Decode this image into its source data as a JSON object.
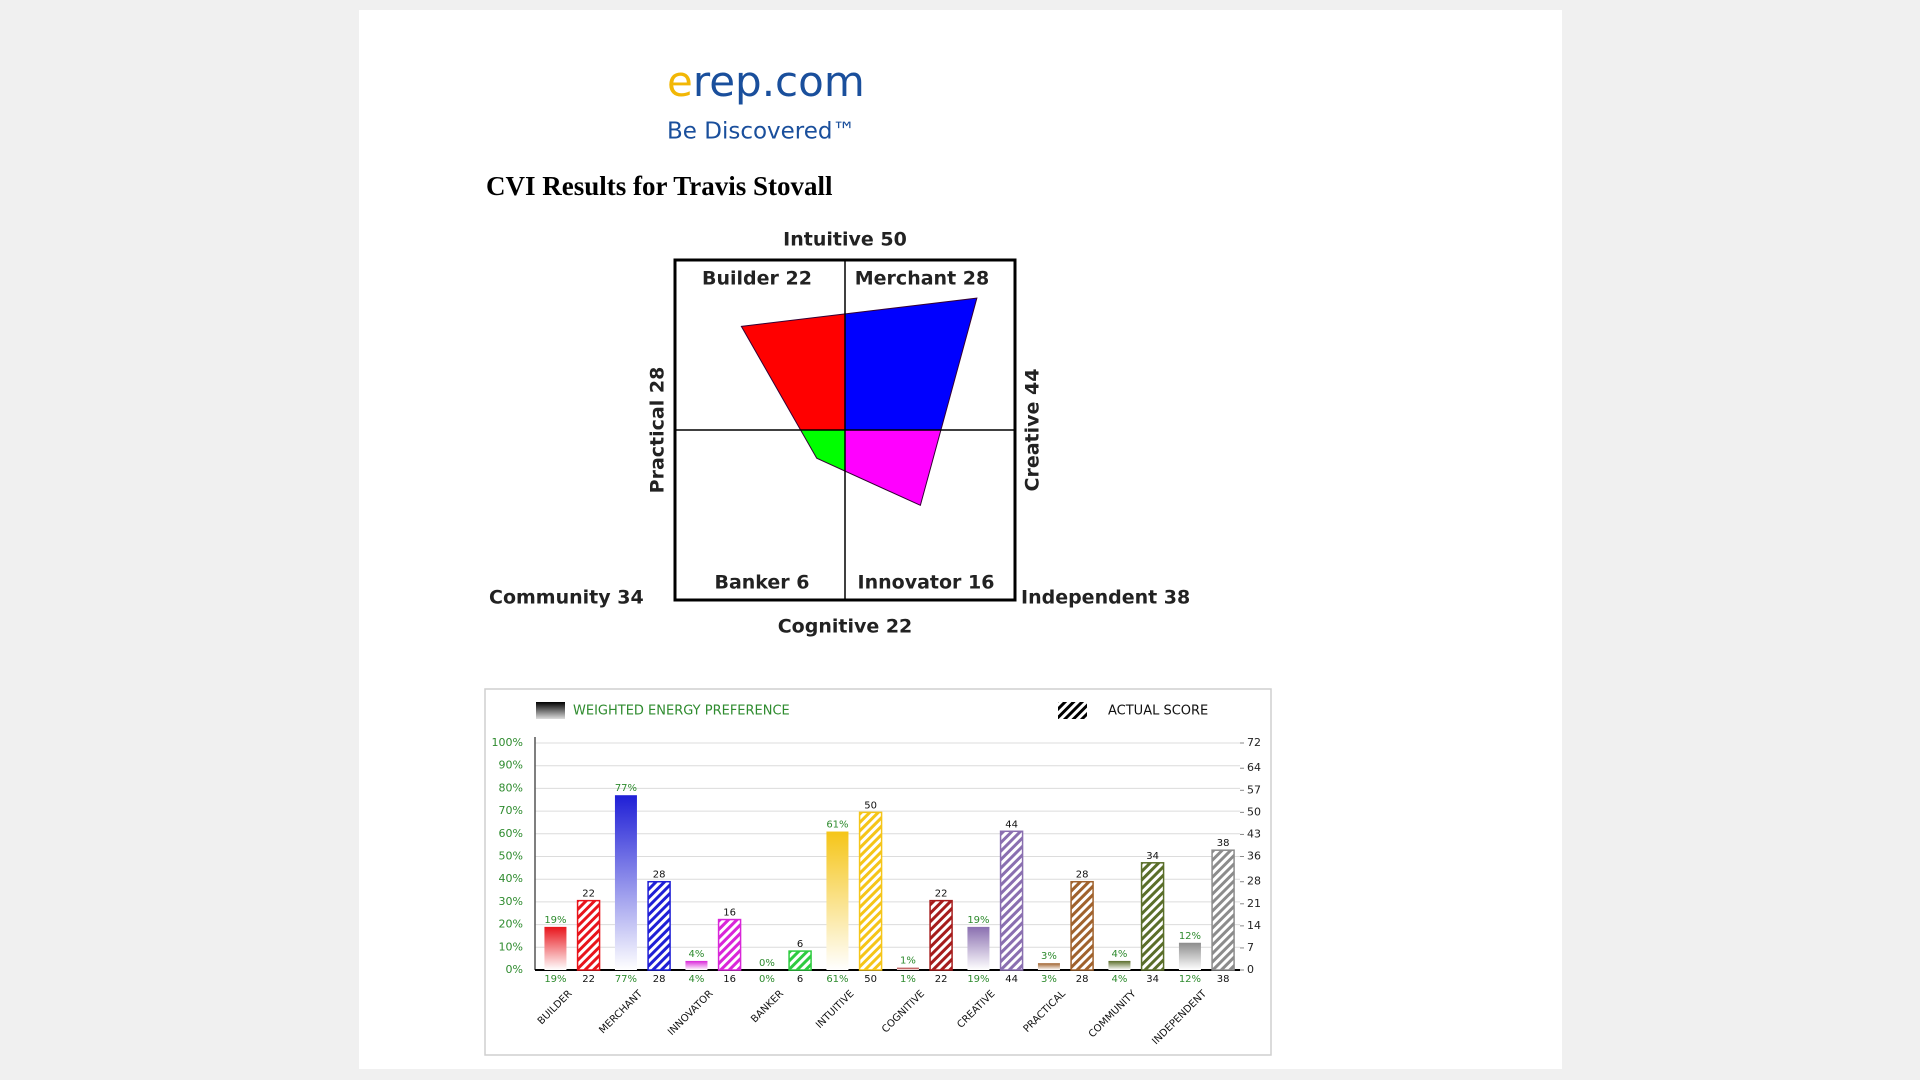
{
  "logo": {
    "mark": "e",
    "text": "rep.com"
  },
  "tagline": "Be Discovered™",
  "title": "CVI Results for Travis Stovall",
  "chart_data": [
    {
      "type": "quadrant",
      "top_label": "Intuitive 50",
      "bottom_label": "Cognitive 22",
      "left_label": "Practical 28",
      "right_label": "Creative 44",
      "bottom_left_label": "Community 34",
      "bottom_right_label": "Independent 38",
      "quadrants": [
        {
          "name": "Builder 22",
          "value": 22,
          "color": "#ff0000"
        },
        {
          "name": "Merchant 28",
          "value": 28,
          "color": "#0000ff"
        },
        {
          "name": "Innovator 16",
          "value": 16,
          "color": "#ff00ff"
        },
        {
          "name": "Banker 6",
          "value": 6,
          "color": "#00ff00"
        }
      ]
    },
    {
      "type": "bar",
      "categories": [
        "BUILDER",
        "MERCHANT",
        "INNOVATOR",
        "BANKER",
        "INTUITIVE",
        "COGNITIVE",
        "CREATIVE",
        "PRACTICAL",
        "COMMUNITY",
        "INDEPENDENT"
      ],
      "colors": [
        "#e8141b",
        "#1f1fd6",
        "#d926d9",
        "#2ecc40",
        "#f5c518",
        "#a61c1c",
        "#8a6fb0",
        "#a0622d",
        "#5a6e2a",
        "#8c8c8c"
      ],
      "series": [
        {
          "name": "WEIGHTED ENERGY PREFERENCE",
          "values": [
            19,
            77,
            4,
            0,
            61,
            1,
            19,
            3,
            4,
            12
          ],
          "value_labels": [
            "19%",
            "77%",
            "4%",
            "0%",
            "61%",
            "1%",
            "19%",
            "3%",
            "4%",
            "12%"
          ]
        },
        {
          "name": "ACTUAL SCORE",
          "axis": "y2",
          "values": [
            22,
            28,
            16,
            6,
            50,
            22,
            44,
            28,
            34,
            38
          ]
        }
      ],
      "ylim": [
        0,
        100
      ],
      "yticks": [
        {
          "value": 0,
          "label": "0%"
        },
        {
          "value": 10,
          "label": "10%"
        },
        {
          "value": 20,
          "label": "20%"
        },
        {
          "value": 30,
          "label": "30%"
        },
        {
          "value": 40,
          "label": "40%"
        },
        {
          "value": 50,
          "label": "50%"
        },
        {
          "value": 60,
          "label": "60%"
        },
        {
          "value": 70,
          "label": "70%"
        },
        {
          "value": 80,
          "label": "80%"
        },
        {
          "value": 90,
          "label": "90%"
        },
        {
          "value": 100,
          "label": "100%"
        }
      ],
      "y2lim": [
        0,
        72
      ],
      "y2ticks": [
        0,
        7,
        14,
        21,
        28,
        36,
        43,
        50,
        57,
        64,
        72
      ],
      "grid": true
    }
  ]
}
